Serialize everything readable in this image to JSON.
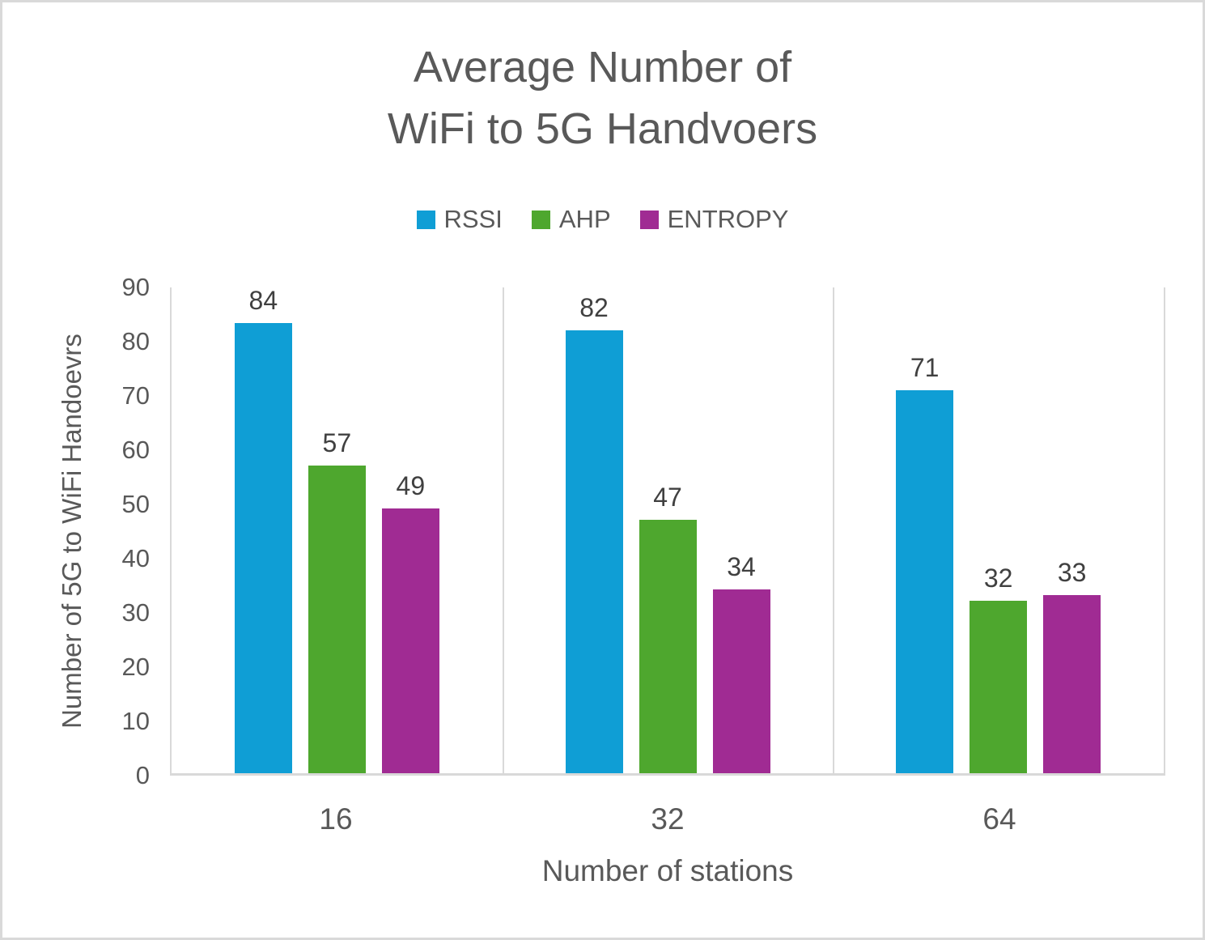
{
  "page": {
    "background": "#ffffff",
    "border_color": "#d9d9d9"
  },
  "chart": {
    "title_text": "Average Number of\nWiFi to 5G Handvoers",
    "x_axis_title": "Number of stations",
    "y_axis_title": "Number of 5G to WiFi Handoevrs"
  },
  "chart_data": {
    "type": "bar",
    "title": "Average Number of WiFi to 5G Handvoers",
    "xlabel": "Number of stations",
    "ylabel": "Number of 5G to WiFi Handoevrs",
    "categories": [
      "16",
      "32",
      "64"
    ],
    "series": [
      {
        "name": "RSSI",
        "color": "#0F9ED5",
        "values": [
          84,
          82,
          71
        ]
      },
      {
        "name": "AHP",
        "color": "#4EA72E",
        "values": [
          57,
          47,
          32
        ]
      },
      {
        "name": "ENTROPY",
        "color": "#A02B93",
        "values": [
          49,
          34,
          33
        ]
      }
    ],
    "ylim": [
      0,
      90
    ],
    "ytick_step": 10,
    "grid": false,
    "legend_position": "top",
    "data_labels": true
  },
  "colors": {
    "axis_line": "#d9d9d9",
    "text": "#595959",
    "data_label": "#404040"
  }
}
